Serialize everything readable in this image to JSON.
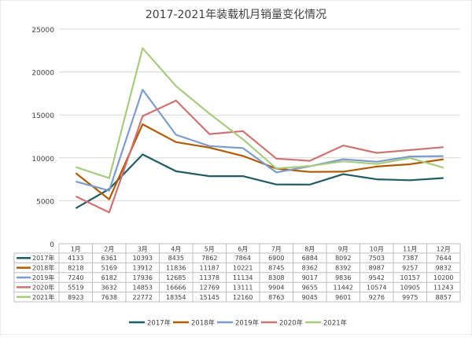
{
  "chart_data": {
    "type": "line",
    "title": "2017-2021年装载机月销量变化情况",
    "xlabel": "",
    "ylabel": "",
    "categories": [
      "1月",
      "2月",
      "3月",
      "4月",
      "5月",
      "6月",
      "7月",
      "8月",
      "9月",
      "10月",
      "11月",
      "12月"
    ],
    "ylim": [
      0,
      25000
    ],
    "yticks": [
      0,
      5000,
      10000,
      15000,
      20000,
      25000
    ],
    "grid": true,
    "legend_position": "bottom",
    "data_table": true,
    "series": [
      {
        "name": "2017年",
        "color": "#1f5c63",
        "values": [
          4133,
          6361,
          10393,
          8435,
          7862,
          7864,
          6900,
          6884,
          8092,
          7503,
          7387,
          7644
        ]
      },
      {
        "name": "2018年",
        "color": "#b35a00",
        "values": [
          8218,
          5169,
          13912,
          11836,
          11187,
          10221,
          8745,
          8362,
          8392,
          8987,
          9257,
          9832
        ]
      },
      {
        "name": "2019年",
        "color": "#7b9ccc",
        "values": [
          7240,
          6182,
          17936,
          12685,
          11378,
          11134,
          8308,
          9017,
          9836,
          9542,
          10157,
          10200
        ]
      },
      {
        "name": "2020年",
        "color": "#cf7272",
        "values": [
          5519,
          3632,
          14853,
          16666,
          12769,
          13111,
          9904,
          9655,
          11442,
          10574,
          10905,
          11243
        ]
      },
      {
        "name": "2021年",
        "color": "#a8cc7d",
        "values": [
          8923,
          7638,
          22772,
          18354,
          15145,
          12160,
          8763,
          9045,
          9601,
          9276,
          9975,
          8857
        ]
      }
    ]
  }
}
